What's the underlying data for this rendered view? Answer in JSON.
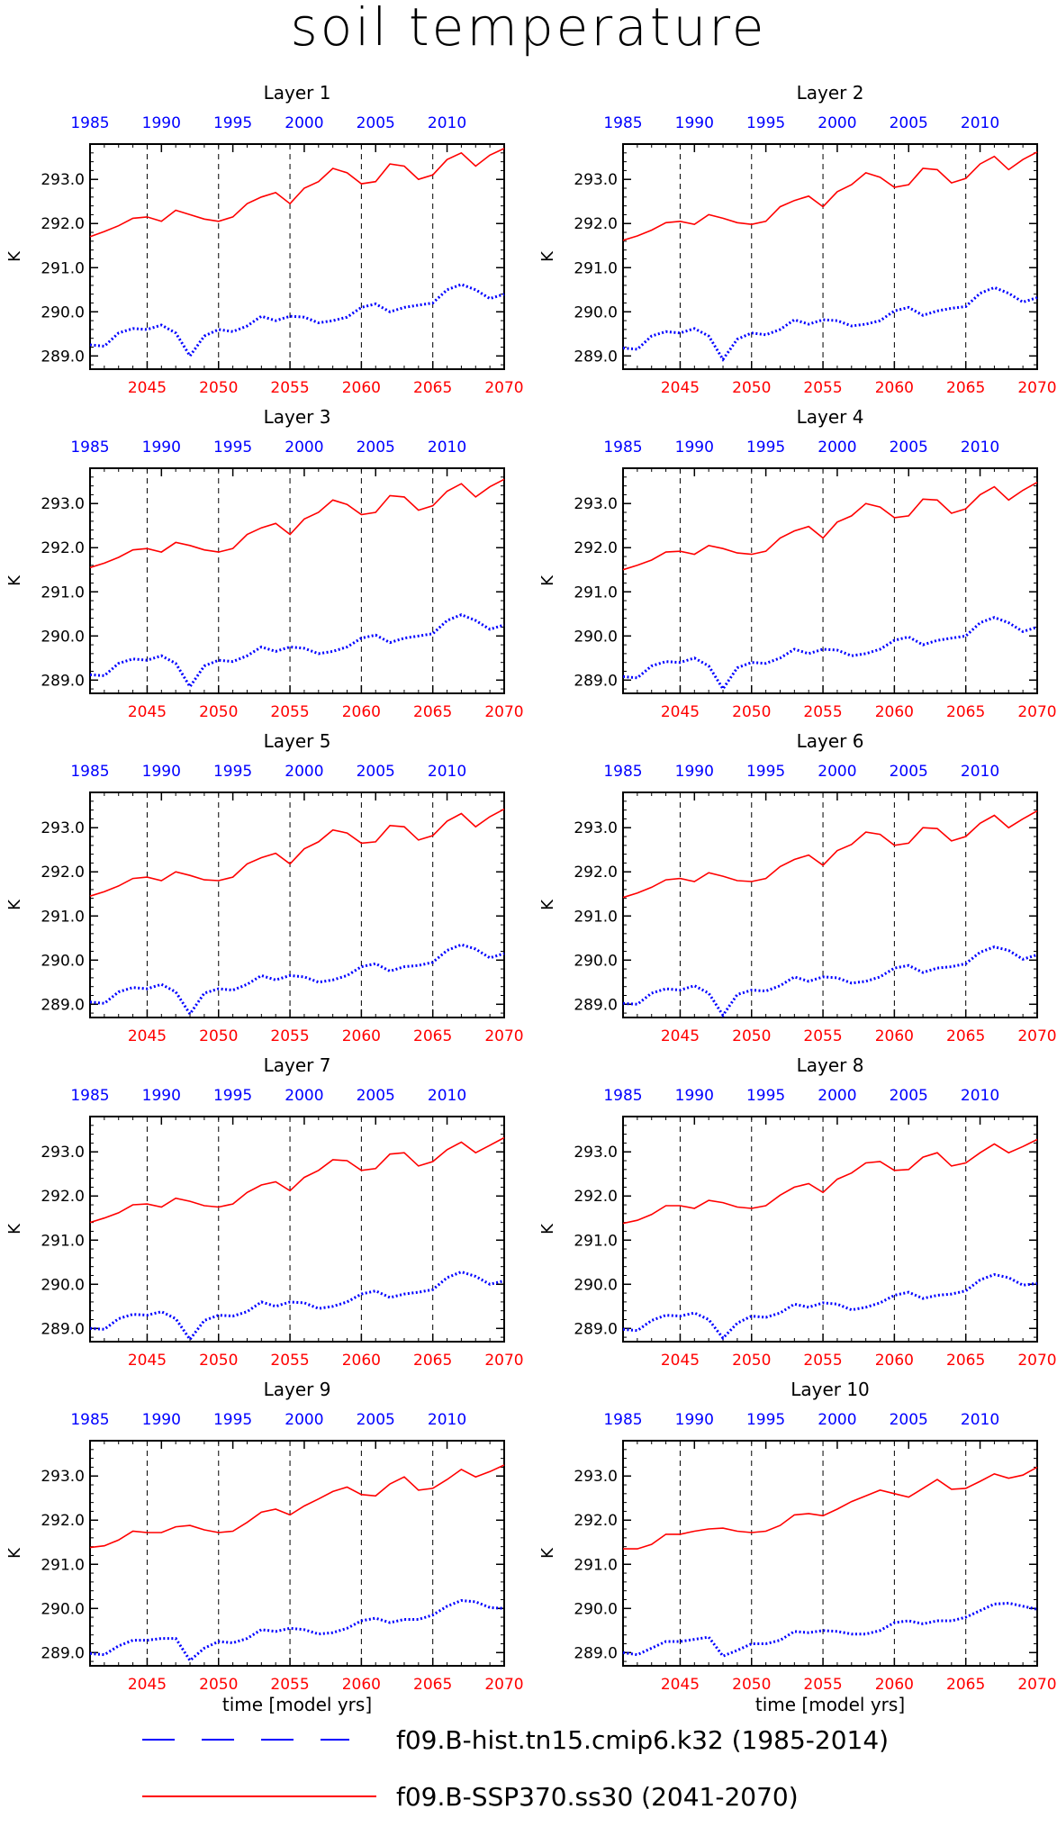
{
  "title": "soil temperature",
  "colors": {
    "hist": "#0000ff",
    "ssp": "#ff0000"
  },
  "legend": [
    {
      "label": "f09.B-hist.tn15.cmip6.k32 (1985-2014)",
      "style": "dashed-blue"
    },
    {
      "label": "f09.B-SSP370.ss30 (2041-2070)",
      "style": "solid-red"
    }
  ],
  "chart_data": {
    "type": "line",
    "ylabel": "K",
    "xlabel": "time [model yrs]",
    "yticks": [
      289.0,
      290.0,
      291.0,
      292.0,
      293.0
    ],
    "ytick_labels": [
      "289.0",
      "290.0",
      "291.0",
      "292.0",
      "293.0"
    ],
    "ylim": [
      288.7,
      293.8
    ],
    "x_top_ticks": [
      1985,
      1990,
      1995,
      2000,
      2005,
      2010
    ],
    "x_top_tick_labels": [
      "1985",
      "1990",
      "1995",
      "2000",
      "2005",
      "2010"
    ],
    "x_top_range": [
      1985,
      2014
    ],
    "x_bottom_ticks": [
      2045,
      2050,
      2055,
      2060,
      2065,
      2070
    ],
    "x_bottom_tick_labels": [
      "2045",
      "2050",
      "2055",
      "2060",
      "2065",
      "2070"
    ],
    "x_bottom_range": [
      2041,
      2070
    ],
    "vertical_dashed_gridlines_at_bottom": [
      2045,
      2050,
      2055,
      2060,
      2065
    ],
    "panels": [
      {
        "title": "Layer 1",
        "ssp": [
          291.7,
          291.82,
          291.95,
          292.12,
          292.15,
          292.05,
          292.3,
          292.2,
          292.1,
          292.05,
          292.15,
          292.45,
          292.6,
          292.7,
          292.45,
          292.8,
          292.95,
          293.25,
          293.15,
          292.9,
          292.95,
          293.35,
          293.3,
          293.0,
          293.1,
          293.45,
          293.6,
          293.3,
          293.55,
          293.7
        ],
        "hist": [
          289.25,
          289.22,
          289.52,
          289.62,
          289.6,
          289.7,
          289.52,
          289.0,
          289.45,
          289.6,
          289.55,
          289.68,
          289.9,
          289.8,
          289.9,
          289.88,
          289.75,
          289.8,
          289.88,
          290.1,
          290.18,
          290.0,
          290.1,
          290.15,
          290.2,
          290.5,
          290.62,
          290.5,
          290.3,
          290.4
        ]
      },
      {
        "title": "Layer 2",
        "ssp": [
          291.62,
          291.72,
          291.85,
          292.02,
          292.05,
          291.98,
          292.2,
          292.12,
          292.02,
          291.98,
          292.05,
          292.38,
          292.52,
          292.62,
          292.38,
          292.72,
          292.88,
          293.15,
          293.05,
          292.82,
          292.88,
          293.25,
          293.22,
          292.92,
          293.02,
          293.35,
          293.52,
          293.22,
          293.45,
          293.62
        ],
        "hist": [
          289.18,
          289.15,
          289.45,
          289.55,
          289.52,
          289.62,
          289.45,
          288.92,
          289.38,
          289.52,
          289.48,
          289.6,
          289.82,
          289.72,
          289.82,
          289.8,
          289.68,
          289.72,
          289.8,
          290.02,
          290.1,
          289.92,
          290.02,
          290.08,
          290.12,
          290.42,
          290.55,
          290.42,
          290.22,
          290.32
        ]
      },
      {
        "title": "Layer 3",
        "ssp": [
          291.55,
          291.65,
          291.78,
          291.95,
          291.98,
          291.9,
          292.12,
          292.05,
          291.95,
          291.9,
          291.98,
          292.3,
          292.45,
          292.55,
          292.3,
          292.65,
          292.8,
          293.08,
          292.98,
          292.75,
          292.8,
          293.18,
          293.15,
          292.85,
          292.95,
          293.28,
          293.45,
          293.15,
          293.38,
          293.55
        ],
        "hist": [
          289.12,
          289.1,
          289.38,
          289.48,
          289.45,
          289.55,
          289.38,
          288.85,
          289.32,
          289.45,
          289.42,
          289.55,
          289.75,
          289.65,
          289.75,
          289.72,
          289.6,
          289.65,
          289.75,
          289.95,
          290.02,
          289.85,
          289.95,
          290.0,
          290.05,
          290.35,
          290.48,
          290.35,
          290.15,
          290.25
        ]
      },
      {
        "title": "Layer 4",
        "ssp": [
          291.5,
          291.6,
          291.72,
          291.9,
          291.92,
          291.85,
          292.05,
          291.98,
          291.88,
          291.85,
          291.92,
          292.22,
          292.38,
          292.48,
          292.22,
          292.58,
          292.72,
          293.0,
          292.92,
          292.68,
          292.72,
          293.1,
          293.08,
          292.78,
          292.88,
          293.2,
          293.38,
          293.08,
          293.3,
          293.48
        ],
        "hist": [
          289.08,
          289.05,
          289.32,
          289.42,
          289.4,
          289.5,
          289.32,
          288.8,
          289.28,
          289.4,
          289.38,
          289.5,
          289.7,
          289.6,
          289.7,
          289.68,
          289.55,
          289.6,
          289.7,
          289.9,
          289.98,
          289.8,
          289.9,
          289.95,
          290.0,
          290.3,
          290.42,
          290.3,
          290.1,
          290.2
        ]
      },
      {
        "title": "Layer 5",
        "ssp": [
          291.45,
          291.55,
          291.68,
          291.85,
          291.88,
          291.8,
          292.0,
          291.92,
          291.82,
          291.8,
          291.88,
          292.18,
          292.32,
          292.42,
          292.18,
          292.52,
          292.68,
          292.95,
          292.88,
          292.65,
          292.68,
          293.05,
          293.02,
          292.72,
          292.82,
          293.15,
          293.32,
          293.02,
          293.25,
          293.42
        ],
        "hist": [
          289.05,
          289.02,
          289.28,
          289.38,
          289.35,
          289.45,
          289.28,
          288.78,
          289.25,
          289.35,
          289.32,
          289.45,
          289.65,
          289.55,
          289.65,
          289.62,
          289.5,
          289.55,
          289.65,
          289.85,
          289.92,
          289.75,
          289.85,
          289.88,
          289.95,
          290.22,
          290.35,
          290.25,
          290.05,
          290.15
        ]
      },
      {
        "title": "Layer 6",
        "ssp": [
          291.42,
          291.52,
          291.65,
          291.82,
          291.85,
          291.78,
          291.98,
          291.9,
          291.8,
          291.78,
          291.85,
          292.12,
          292.28,
          292.38,
          292.15,
          292.48,
          292.62,
          292.9,
          292.85,
          292.6,
          292.65,
          293.0,
          292.98,
          292.7,
          292.8,
          293.1,
          293.28,
          293.0,
          293.2,
          293.38
        ],
        "hist": [
          289.02,
          289.0,
          289.25,
          289.35,
          289.32,
          289.42,
          289.25,
          288.75,
          289.22,
          289.32,
          289.3,
          289.42,
          289.62,
          289.52,
          289.62,
          289.6,
          289.48,
          289.52,
          289.62,
          289.82,
          289.88,
          289.72,
          289.82,
          289.85,
          289.92,
          290.18,
          290.3,
          290.22,
          290.02,
          290.12
        ]
      },
      {
        "title": "Layer 7",
        "ssp": [
          291.4,
          291.5,
          291.62,
          291.8,
          291.82,
          291.75,
          291.95,
          291.88,
          291.78,
          291.75,
          291.82,
          292.08,
          292.25,
          292.32,
          292.12,
          292.42,
          292.58,
          292.82,
          292.8,
          292.58,
          292.62,
          292.95,
          292.98,
          292.68,
          292.78,
          293.05,
          293.22,
          292.98,
          293.15,
          293.32
        ],
        "hist": [
          289.0,
          288.98,
          289.22,
          289.32,
          289.3,
          289.38,
          289.22,
          288.75,
          289.18,
          289.3,
          289.28,
          289.38,
          289.6,
          289.5,
          289.6,
          289.58,
          289.45,
          289.5,
          289.6,
          289.78,
          289.85,
          289.7,
          289.78,
          289.82,
          289.88,
          290.15,
          290.28,
          290.18,
          290.0,
          290.08
        ]
      },
      {
        "title": "Layer 8",
        "ssp": [
          291.38,
          291.45,
          291.58,
          291.78,
          291.78,
          291.72,
          291.9,
          291.85,
          291.75,
          291.72,
          291.78,
          292.02,
          292.2,
          292.28,
          292.08,
          292.38,
          292.52,
          292.75,
          292.78,
          292.58,
          292.6,
          292.88,
          292.98,
          292.68,
          292.75,
          292.98,
          293.18,
          292.98,
          293.12,
          293.28
        ],
        "hist": [
          288.98,
          288.95,
          289.18,
          289.3,
          289.28,
          289.35,
          289.2,
          288.78,
          289.12,
          289.28,
          289.25,
          289.35,
          289.55,
          289.48,
          289.58,
          289.55,
          289.42,
          289.48,
          289.58,
          289.75,
          289.82,
          289.68,
          289.75,
          289.78,
          289.85,
          290.1,
          290.22,
          290.15,
          289.98,
          290.02
        ]
      },
      {
        "title": "Layer 9",
        "ssp": [
          291.38,
          291.42,
          291.55,
          291.75,
          291.72,
          291.72,
          291.85,
          291.88,
          291.78,
          291.72,
          291.75,
          291.95,
          292.18,
          292.25,
          292.12,
          292.32,
          292.48,
          292.65,
          292.75,
          292.58,
          292.55,
          292.82,
          292.98,
          292.68,
          292.72,
          292.92,
          293.15,
          292.98,
          293.1,
          293.25
        ],
        "hist": [
          288.98,
          288.95,
          289.15,
          289.28,
          289.28,
          289.32,
          289.32,
          288.82,
          289.1,
          289.25,
          289.22,
          289.32,
          289.52,
          289.48,
          289.55,
          289.52,
          289.42,
          289.45,
          289.55,
          289.72,
          289.78,
          289.68,
          289.75,
          289.75,
          289.85,
          290.05,
          290.18,
          290.15,
          290.02,
          290.0
        ]
      },
      {
        "title": "Layer 10",
        "ssp": [
          291.35,
          291.35,
          291.45,
          291.68,
          291.68,
          291.75,
          291.8,
          291.82,
          291.75,
          291.72,
          291.75,
          291.88,
          292.12,
          292.15,
          292.1,
          292.25,
          292.42,
          292.55,
          292.68,
          292.6,
          292.52,
          292.72,
          292.92,
          292.7,
          292.72,
          292.88,
          293.05,
          292.95,
          293.02,
          293.2
        ],
        "hist": [
          289.0,
          288.95,
          289.1,
          289.25,
          289.25,
          289.3,
          289.35,
          288.92,
          289.05,
          289.2,
          289.2,
          289.28,
          289.48,
          289.45,
          289.5,
          289.48,
          289.42,
          289.42,
          289.5,
          289.68,
          289.72,
          289.65,
          289.72,
          289.72,
          289.8,
          289.95,
          290.1,
          290.12,
          290.05,
          289.98
        ]
      }
    ]
  }
}
